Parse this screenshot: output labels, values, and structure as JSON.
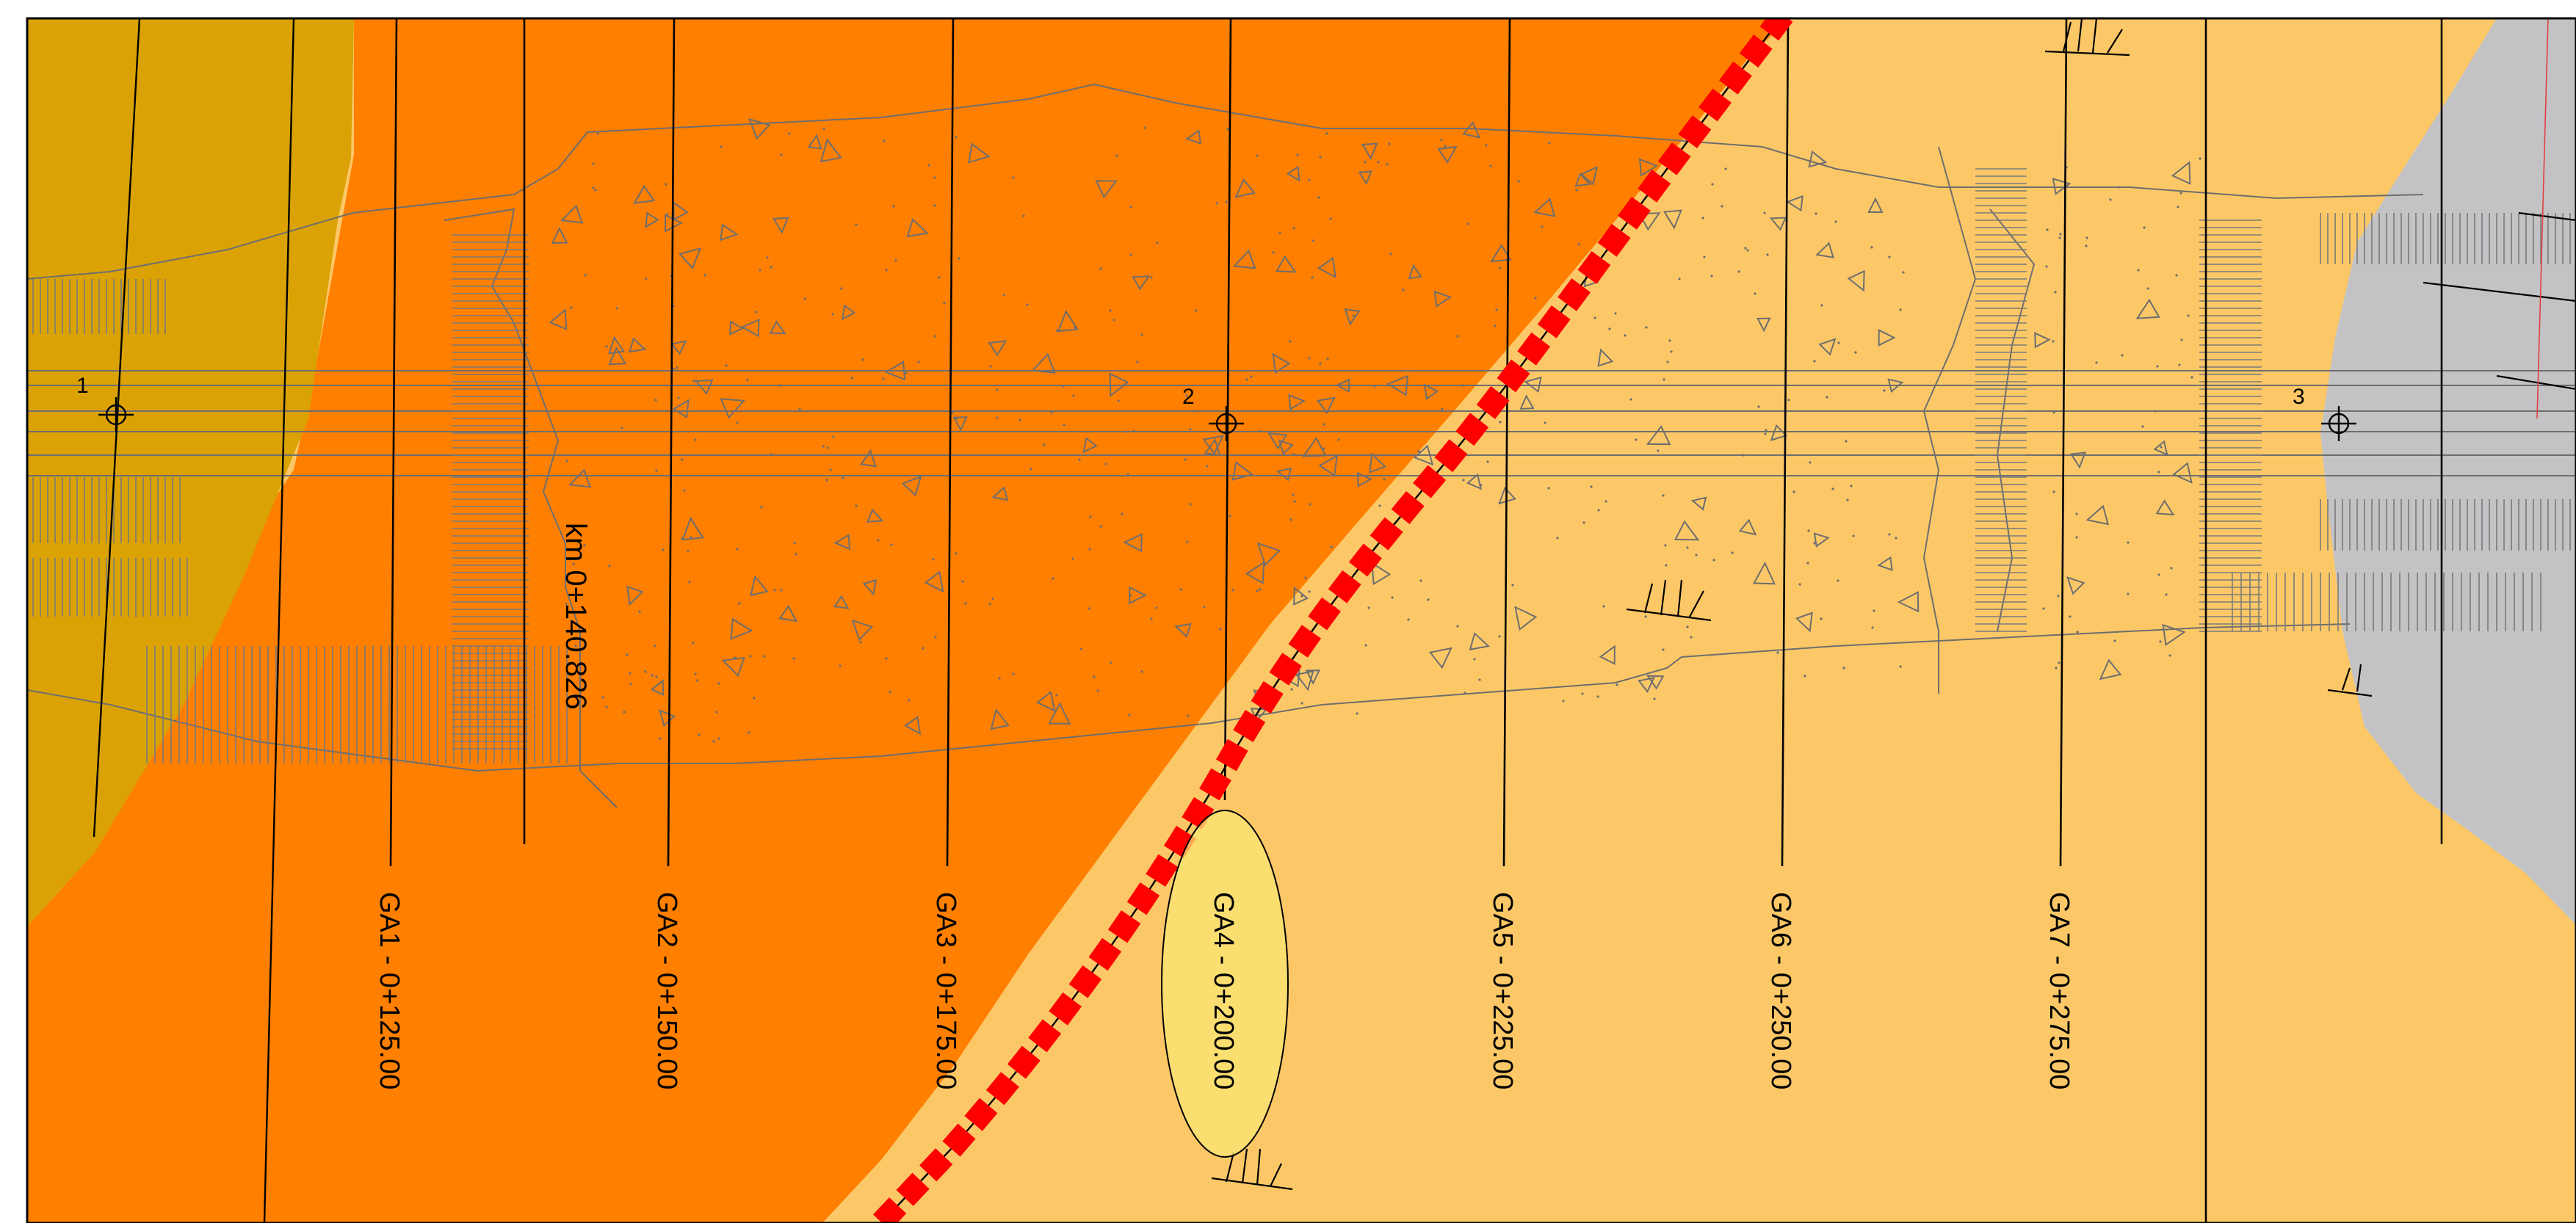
{
  "colors": {
    "zone_dark_yellow": "#DAA204",
    "zone_orange": "#FF7F00",
    "zone_light_orange": "#FCC867",
    "zone_grey": "#C3C3C6",
    "highlight_ellipse": "#FBE673",
    "boundary_dashes": "#FF0000",
    "linework": "#000000",
    "construction_lines": "#6E6E6E"
  },
  "survey_points": [
    {
      "label": "1"
    },
    {
      "label": "2"
    },
    {
      "label": "3"
    }
  ],
  "km_label": "km 0+140.826",
  "sections": [
    {
      "label": "GA1 - 0+125.00",
      "highlighted": false
    },
    {
      "label": "GA2 - 0+150.00",
      "highlighted": false
    },
    {
      "label": "GA3 - 0+175.00",
      "highlighted": false
    },
    {
      "label": "GA4 - 0+200.00",
      "highlighted": true
    },
    {
      "label": "GA5 - 0+225.00",
      "highlighted": false
    },
    {
      "label": "GA6 - 0+250.00",
      "highlighted": false
    },
    {
      "label": "GA7 - 0+275.00",
      "highlighted": false
    }
  ]
}
